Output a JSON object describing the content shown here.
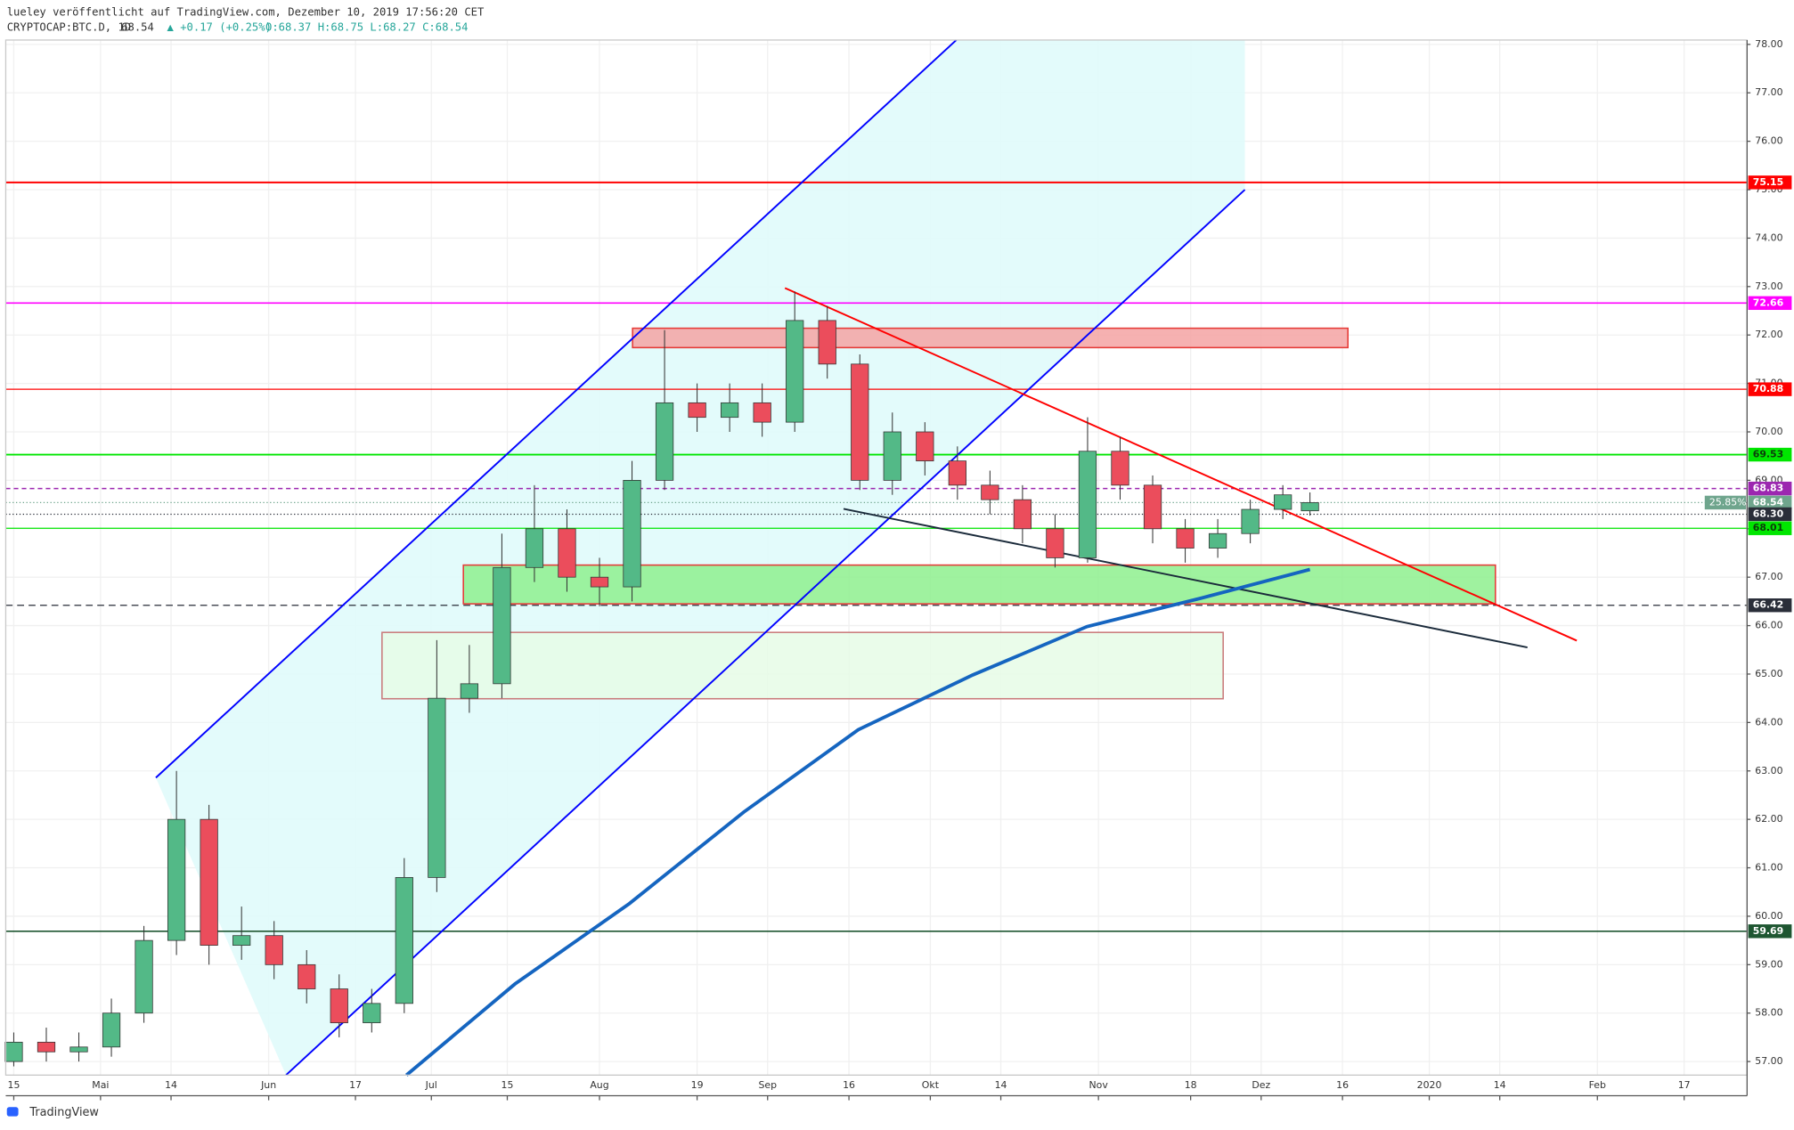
{
  "header": {
    "publisher": "lueley veröffentlicht auf TradingView.com, Dezember 10, 2019 17:56:20 CET",
    "symbol": "CRYPTOCAP:BTC.D, 1D",
    "last": "68.54",
    "change": "▲ +0.17 (+0.25%)",
    "ohlc": "O:68.37 H:68.75 L:68.27 C:68.54"
  },
  "footer": {
    "brand": "TradingView"
  },
  "chart_data": {
    "type": "candlestick",
    "xlim": [
      -1.48,
      319.6
    ],
    "ylim": [
      56.72,
      78.09
    ],
    "grid": true,
    "xticks": [
      {
        "value": 0,
        "label": "15"
      },
      {
        "value": 16,
        "label": "Mai"
      },
      {
        "value": 29,
        "label": "14"
      },
      {
        "value": 47,
        "label": "Jun"
      },
      {
        "value": 63,
        "label": "17"
      },
      {
        "value": 77,
        "label": "Jul"
      },
      {
        "value": 91,
        "label": "15"
      },
      {
        "value": 108,
        "label": "Aug"
      },
      {
        "value": 126,
        "label": "19"
      },
      {
        "value": 139,
        "label": "Sep"
      },
      {
        "value": 154,
        "label": "16"
      },
      {
        "value": 169,
        "label": "Okt"
      },
      {
        "value": 182,
        "label": "14"
      },
      {
        "value": 200,
        "label": "Nov"
      },
      {
        "value": 217,
        "label": "18"
      },
      {
        "value": 230,
        "label": "Dez"
      },
      {
        "value": 245,
        "label": "16"
      },
      {
        "value": 261,
        "label": "2020"
      },
      {
        "value": 274,
        "label": "14"
      },
      {
        "value": 292,
        "label": "Feb"
      },
      {
        "value": 308,
        "label": "17"
      }
    ],
    "yticks": [
      {
        "value": 57,
        "label": "57.00"
      },
      {
        "value": 58,
        "label": "58.00"
      },
      {
        "value": 59,
        "label": "59.00"
      },
      {
        "value": 60,
        "label": "60.00"
      },
      {
        "value": 61,
        "label": "61.00"
      },
      {
        "value": 62,
        "label": "62.00"
      },
      {
        "value": 63,
        "label": "63.00"
      },
      {
        "value": 64,
        "label": "64.00"
      },
      {
        "value": 65,
        "label": "65.00"
      },
      {
        "value": 66,
        "label": "66.00"
      },
      {
        "value": 67,
        "label": "67.00"
      },
      {
        "value": 68,
        "label": "68.00"
      },
      {
        "value": 69,
        "label": "69.00"
      },
      {
        "value": 70,
        "label": "70.00"
      },
      {
        "value": 71,
        "label": "71.00"
      },
      {
        "value": 72,
        "label": "72.00"
      },
      {
        "value": 73,
        "label": "73.00"
      },
      {
        "value": 74,
        "label": "74.00"
      },
      {
        "value": 75,
        "label": "75.00"
      },
      {
        "value": 76,
        "label": "76.00"
      },
      {
        "value": 77,
        "label": "77.00"
      },
      {
        "value": 78,
        "label": "78.00"
      }
    ],
    "candles": {
      "up_color": "#53b987",
      "down_color": "#eb4d5c",
      "x": [
        0,
        6,
        12,
        18,
        24,
        30,
        36,
        42,
        48,
        54,
        60,
        66,
        72,
        78,
        84,
        90,
        96,
        102,
        108,
        114,
        120,
        126,
        132,
        138,
        144,
        150,
        156,
        162,
        168,
        174,
        180,
        186,
        192,
        198,
        204,
        210,
        216,
        222,
        228,
        234,
        239
      ],
      "open": [
        57.0,
        57.4,
        57.2,
        57.3,
        58.0,
        59.5,
        62.0,
        59.4,
        59.6,
        59.0,
        58.5,
        57.8,
        58.2,
        60.8,
        64.5,
        64.8,
        67.2,
        68.0,
        67.0,
        66.8,
        69.0,
        70.6,
        70.3,
        70.6,
        70.2,
        72.3,
        71.4,
        69.0,
        70.0,
        69.4,
        68.9,
        68.6,
        68.0,
        67.4,
        69.6,
        68.9,
        68.0,
        67.6,
        67.9,
        68.4,
        68.37
      ],
      "high": [
        57.6,
        57.7,
        57.6,
        58.3,
        59.8,
        63.0,
        62.3,
        60.2,
        59.9,
        59.3,
        58.8,
        58.5,
        61.2,
        65.7,
        65.6,
        67.9,
        68.9,
        68.4,
        67.4,
        69.4,
        72.1,
        71.0,
        71.0,
        71.0,
        72.9,
        72.6,
        71.6,
        70.4,
        70.2,
        69.7,
        69.2,
        68.9,
        68.3,
        70.3,
        69.9,
        69.1,
        68.2,
        68.2,
        68.6,
        68.9,
        68.75
      ],
      "low": [
        56.9,
        57.0,
        57.0,
        57.1,
        57.8,
        59.2,
        59.0,
        59.1,
        58.7,
        58.2,
        57.5,
        57.6,
        58.0,
        60.5,
        64.2,
        64.5,
        66.9,
        66.7,
        66.4,
        66.5,
        68.8,
        70.0,
        70.0,
        69.9,
        70.0,
        71.1,
        68.8,
        68.7,
        69.1,
        68.6,
        68.3,
        67.7,
        67.2,
        67.3,
        68.6,
        67.7,
        67.3,
        67.4,
        67.7,
        68.2,
        68.27
      ],
      "close": [
        57.4,
        57.2,
        57.3,
        58.0,
        59.5,
        62.0,
        59.4,
        59.6,
        59.0,
        58.5,
        57.8,
        58.2,
        60.8,
        64.5,
        64.8,
        67.2,
        68.0,
        67.0,
        66.8,
        69.0,
        70.6,
        70.3,
        70.6,
        70.2,
        72.3,
        71.4,
        69.0,
        70.0,
        69.4,
        68.9,
        68.6,
        68.0,
        67.4,
        69.6,
        68.9,
        68.0,
        67.6,
        67.9,
        68.4,
        68.7,
        68.54
      ]
    },
    "channel_fill": "#e0fbfb",
    "trendlines": [
      {
        "x": [
          26.2,
          173.8
        ],
        "y": [
          62.86,
          78.09
        ],
        "color": "#0000ff",
        "width": 1.5
      },
      {
        "x": [
          50.2,
          227.0
        ],
        "y": [
          56.72,
          75.0
        ],
        "color": "#0000ff",
        "width": 1.5
      },
      {
        "x": [
          142.2,
          288.2
        ],
        "y": [
          72.97,
          65.69
        ],
        "color": "#ff0000",
        "width": 1.5
      },
      {
        "x": [
          153.0,
          279.1
        ],
        "y": [
          68.41,
          65.55
        ],
        "color": "#1a2a3a",
        "width": 1.5
      },
      {
        "x": [
          72.4,
          92.4,
          113.5,
          134.6,
          155.7,
          176.8,
          197.9,
          219.0,
          239.0
        ],
        "y": [
          56.72,
          58.6,
          60.26,
          62.15,
          63.85,
          64.98,
          65.98,
          66.57,
          67.16
        ],
        "color": "#1565c0",
        "width": 3
      }
    ],
    "zones": [
      {
        "x": [
          114.1,
          246.0
        ],
        "y": [
          72.14,
          71.74
        ],
        "fill": "#f5a3a3",
        "stroke": "#e53935"
      },
      {
        "x": [
          82.9,
          273.2
        ],
        "y": [
          67.25,
          66.45
        ],
        "fill": "#8ef08e",
        "stroke": "#e53935"
      },
      {
        "x": [
          67.9,
          223.0
        ],
        "y": [
          65.86,
          64.49
        ],
        "fill": "#e6fbe6",
        "stroke": "#c97a7a"
      }
    ],
    "levels": [
      {
        "value": 75.15,
        "color": "#ff0000",
        "dash": "none",
        "width": 1.5,
        "text_color": "#ffffff"
      },
      {
        "value": 72.66,
        "color": "#ff00ff",
        "dash": "none",
        "width": 1.2,
        "text_color": "#ffffff"
      },
      {
        "value": 70.88,
        "color": "#ff0000",
        "dash": "none",
        "width": 1,
        "text_color": "#ffffff"
      },
      {
        "value": 69.53,
        "color": "#00e600",
        "dash": "none",
        "width": 1.5,
        "text_color": "#0b3d0b"
      },
      {
        "value": 68.83,
        "color": "#9c27b0",
        "dash": "4 3",
        "width": 1.2,
        "text_color": "#ffffff"
      },
      {
        "value": 68.54,
        "color": "#6fa58d",
        "dash": "1 2",
        "width": 1,
        "text_color": "#ffffff",
        "percent_label": "25.85%"
      },
      {
        "value": 68.3,
        "label": "68.30",
        "color": "#2a2e39",
        "dash": "1 2",
        "width": 1,
        "text_color": "#ffffff"
      },
      {
        "value": 68.01,
        "color": "#00e600",
        "dash": "none",
        "width": 1,
        "text_color": "#0b3d0b"
      },
      {
        "value": 66.42,
        "color": "#2a2e39",
        "dash": "6 4",
        "width": 1,
        "text_color": "#ffffff"
      },
      {
        "value": 59.69,
        "color": "#1e5631",
        "dash": "none",
        "width": 1.2,
        "text_color": "#ffffff"
      }
    ]
  }
}
